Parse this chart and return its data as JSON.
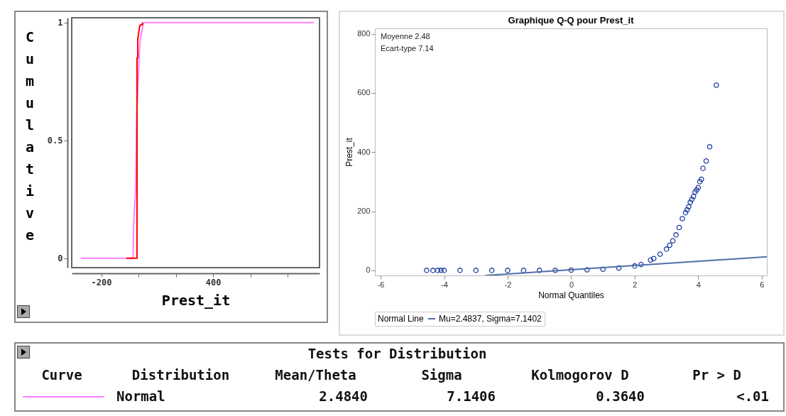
{
  "chart_data": [
    {
      "type": "line",
      "xlabel": "Prest_it",
      "ylabel": "Cumulative",
      "xlim": [
        -358,
        970
      ],
      "ylim": [
        -0.04,
        1.02
      ],
      "xticks": [
        -200,
        {
          "value": 0,
          "label": null
        },
        {
          "value": 200,
          "label": null
        },
        400,
        {
          "value": 600,
          "label": null
        },
        {
          "value": 800,
          "label": null
        }
      ],
      "yticks": [
        0,
        0.5,
        1
      ],
      "grid": false,
      "marker": "none",
      "line_style": "solid",
      "series": [
        {
          "color": "#ff80ff",
          "x": [
            -310,
            -29,
            -26,
            -15,
            -10,
            0,
            5,
            10,
            20,
            27,
            940
          ],
          "values": [
            0,
            0,
            0.15,
            0.3,
            0.6,
            0.78,
            0.88,
            0.93,
            0.97,
            1,
            1
          ]
        },
        {
          "color": "#ff0000",
          "x": [
            -65,
            -8,
            -8,
            -8,
            -4,
            -4,
            0,
            5,
            10,
            20,
            21
          ],
          "values": [
            0,
            0,
            0.35,
            0.85,
            0.85,
            0.93,
            0.95,
            0.98,
            0.99,
            0.99,
            1
          ]
        }
      ]
    },
    {
      "type": "scatter",
      "title": "Graphique Q-Q pour Prest_it",
      "xlabel": "Normal Quantiles",
      "ylabel": "Prest_it",
      "legend_title": "Normal Line",
      "legend": "bottom",
      "xlim": [
        -6.18,
        6.16
      ],
      "ylim": [
        -17,
        818
      ],
      "xticks": [
        -6,
        -4,
        -2,
        0,
        2,
        4,
        6
      ],
      "yticks": [
        0,
        200,
        400,
        600,
        800
      ],
      "grid": false,
      "annotations": [
        "Moyenne   2.48",
        "Ecart-type  7.14"
      ],
      "series": [
        {
          "marker": "circle",
          "color": "#1f3ea0",
          "x": [
            -4.55,
            -4.35,
            -4.2,
            -4.1,
            -4.0,
            -3.5,
            -3,
            -2.5,
            -2,
            -1.5,
            -1,
            -0.5,
            0,
            0.5,
            1,
            1.5,
            2,
            2.2,
            2.5,
            2.6,
            2.8,
            3.0,
            3.1,
            3.2,
            3.3,
            3.4,
            3.5,
            3.6,
            3.65,
            3.7,
            3.75,
            3.8,
            3.85,
            3.9,
            3.95,
            4.0,
            4.05,
            4.1,
            4.15,
            4.25,
            4.36,
            4.57
          ],
          "values": [
            0,
            0,
            0,
            0,
            0,
            0,
            0,
            0,
            0,
            0,
            0,
            0,
            1,
            2,
            4,
            8,
            15,
            20,
            35,
            40,
            55,
            72,
            85,
            100,
            120,
            145,
            175,
            195,
            205,
            215,
            230,
            240,
            250,
            265,
            272,
            280,
            300,
            308,
            345,
            370,
            418,
            626
          ]
        },
        {
          "type": "line",
          "name": "Mu=2.4837, Sigma=7.1402",
          "color": "#4f6fa8",
          "line_style": "solid",
          "x": [
            -2.7,
            6.16
          ],
          "values": [
            -17,
            46
          ]
        }
      ]
    },
    {
      "type": "other",
      "title": "Tests for Distribution",
      "annotations": [
        "Curve",
        "Distribution",
        "Mean/Theta",
        "Sigma",
        "Kolmogorov D",
        "Pr > D",
        "Normal",
        "2.4840",
        "7.1406",
        "0.3640",
        "<.01"
      ]
    }
  ]
}
